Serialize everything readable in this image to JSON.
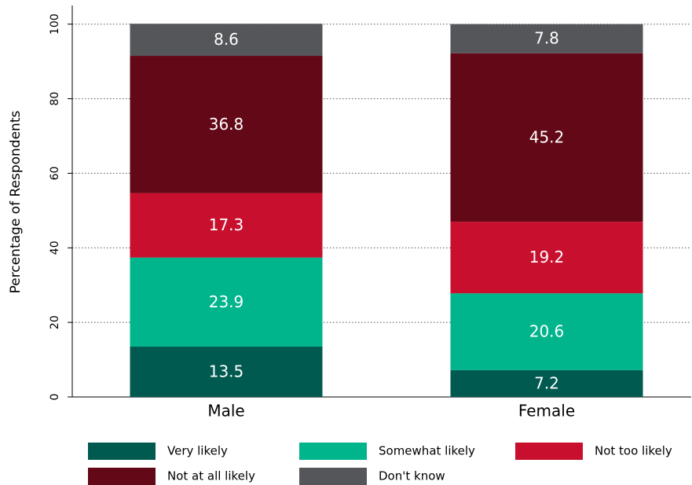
{
  "chart_data": {
    "type": "stacked_bar",
    "y_label": "Percentage of Respondents",
    "categories": [
      "Male",
      "Female"
    ],
    "series": [
      {
        "name": "Very likely",
        "color": "#005a50",
        "values": [
          13.5,
          7.2
        ]
      },
      {
        "name": "Somewhat likely",
        "color": "#00b48c",
        "values": [
          23.9,
          20.6
        ]
      },
      {
        "name": "Not too likely",
        "color": "#c8102e",
        "values": [
          17.3,
          19.2
        ]
      },
      {
        "name": "Not at all likely",
        "color": "#620816",
        "values": [
          36.8,
          45.2
        ]
      },
      {
        "name": "Don't know",
        "color": "#55565a",
        "values": [
          8.6,
          7.8
        ]
      }
    ],
    "ylim": [
      0,
      105
    ],
    "yticks": [
      0,
      20,
      40,
      60,
      80,
      100
    ],
    "grid": true,
    "legend": "bottom"
  }
}
